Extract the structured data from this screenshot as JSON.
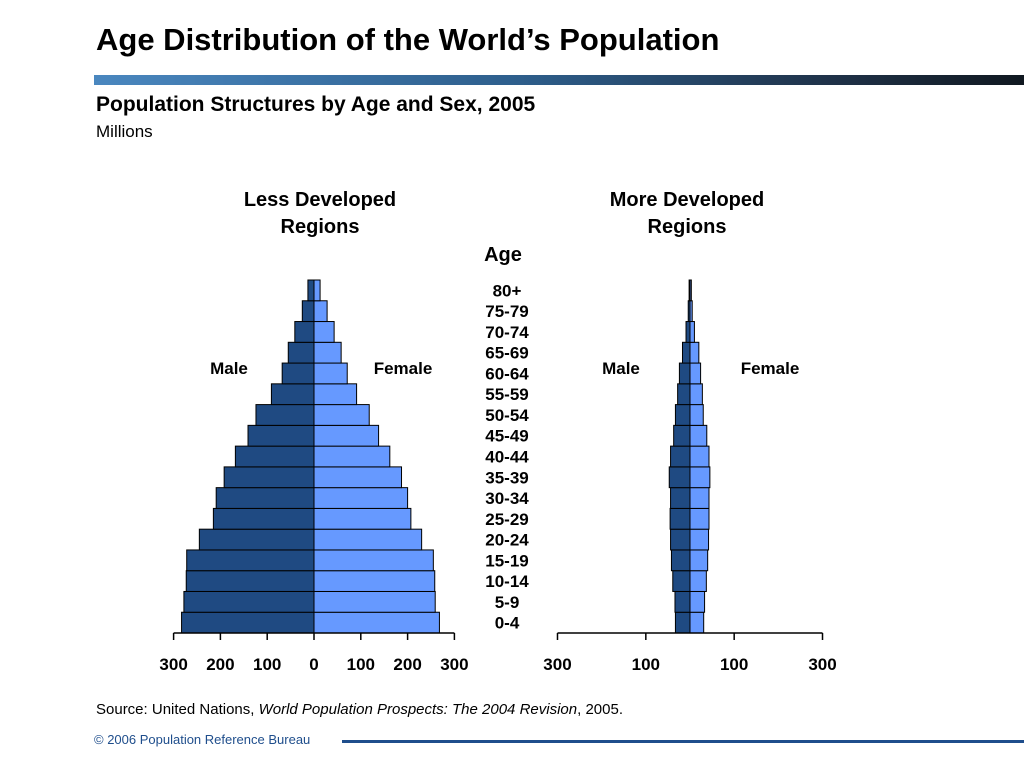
{
  "page": {
    "title": "Age Distribution of the World’s Population",
    "subtitle": "Population Structures by Age and Sex, 2005",
    "units": "Millions",
    "source_prefix": "Source: United Nations, ",
    "source_title": "World Population Prospects: The 2004 Revision",
    "source_suffix": ", 2005.",
    "footer": "© 2006 Population Reference Bureau"
  },
  "colors": {
    "male": "#1f4a82",
    "female": "#6699ff",
    "outline": "#000000",
    "title_rule_start": "#4a87bf",
    "title_rule_end": "#101820",
    "footer": "#1f4e8c"
  },
  "chart_data": {
    "type": "population-pyramid",
    "age_axis_title": "Age",
    "age_groups": [
      "0-4",
      "5-9",
      "10-14",
      "15-19",
      "20-24",
      "25-29",
      "30-34",
      "35-39",
      "40-44",
      "45-49",
      "50-54",
      "55-59",
      "60-64",
      "65-69",
      "70-74",
      "75-79",
      "80+"
    ],
    "panels": [
      {
        "name": "Less Developed Regions",
        "title_lines": [
          "Less Developed",
          "Regions"
        ],
        "male_label": "Male",
        "female_label": "Female",
        "xlim": [
          -300,
          300
        ],
        "tick_values": [
          -300,
          -200,
          -100,
          0,
          100,
          200,
          300
        ],
        "tick_labels": [
          "300",
          "200",
          "100",
          "0",
          "100",
          "200",
          "300"
        ],
        "male": [
          283,
          278,
          273,
          272,
          245,
          215,
          209,
          192,
          168,
          141,
          124,
          91,
          68,
          55,
          41,
          25,
          13
        ],
        "female": [
          268,
          259,
          258,
          255,
          230,
          207,
          200,
          187,
          162,
          138,
          118,
          91,
          71,
          58,
          43,
          28,
          13
        ]
      },
      {
        "name": "More Developed Regions",
        "title_lines": [
          "More Developed",
          "Regions"
        ],
        "male_label": "Male",
        "female_label": "Female",
        "xlim": [
          -300,
          300
        ],
        "tick_values": [
          -300,
          -100,
          100,
          300
        ],
        "tick_labels": [
          "300",
          "100",
          "100",
          "300"
        ],
        "male": [
          33,
          34,
          39,
          42,
          44,
          45,
          44,
          47,
          44,
          37,
          33,
          28,
          24,
          17,
          9,
          4,
          2
        ],
        "female": [
          31,
          33,
          37,
          40,
          42,
          43,
          43,
          45,
          43,
          38,
          30,
          28,
          24,
          20,
          10,
          5,
          3
        ]
      }
    ]
  }
}
